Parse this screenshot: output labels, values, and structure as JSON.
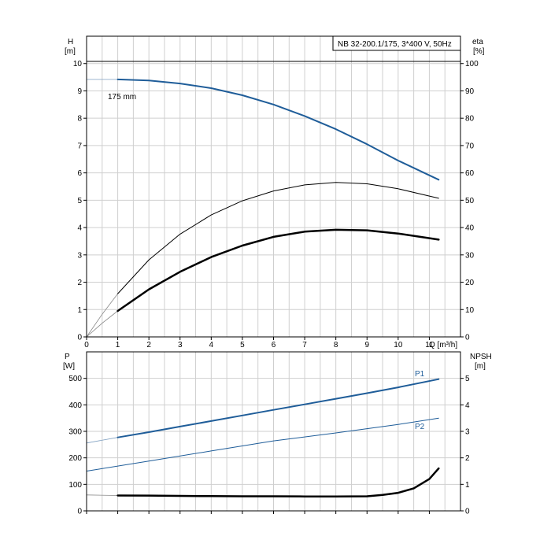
{
  "chart_title": "NB 32-200.1/175, 3*400 V, 50Hz",
  "chart_data": [
    {
      "type": "line",
      "name": "upper",
      "x": {
        "label": "Q [m³/h]",
        "min": 0,
        "max": 12,
        "ticks": [
          0,
          1,
          2,
          3,
          4,
          5,
          6,
          7,
          8,
          9,
          10,
          11
        ]
      },
      "y_left": {
        "label": "H",
        "unit": "[m]",
        "min": 0,
        "max": 11,
        "ticks": [
          0,
          1,
          2,
          3,
          4,
          5,
          6,
          7,
          8,
          9,
          10
        ]
      },
      "y_right": {
        "label": "eta",
        "unit": "[%]",
        "min": 0,
        "max": 110,
        "ticks": [
          0,
          10,
          20,
          30,
          40,
          50,
          60,
          70,
          80,
          90,
          100
        ]
      },
      "grid": true,
      "series": [
        {
          "name": "175 mm",
          "axis": "left",
          "color": "#1f5d99",
          "style": "thick",
          "points": [
            [
              1,
              9.42
            ],
            [
              2,
              9.38
            ],
            [
              3,
              9.27
            ],
            [
              4,
              9.1
            ],
            [
              5,
              8.84
            ],
            [
              6,
              8.5
            ],
            [
              7,
              8.08
            ],
            [
              8,
              7.6
            ],
            [
              9,
              7.05
            ],
            [
              10,
              6.45
            ],
            [
              11.3,
              5.75
            ]
          ],
          "extension": [
            [
              0,
              9.42
            ],
            [
              1,
              9.42
            ]
          ]
        },
        {
          "name": "",
          "axis": "right",
          "color": "#000000",
          "style": "thin",
          "points": [
            [
              1,
              15.8
            ],
            [
              2,
              28.2
            ],
            [
              3,
              37.6
            ],
            [
              4,
              44.6
            ],
            [
              5,
              49.8
            ],
            [
              6,
              53.4
            ],
            [
              7,
              55.6
            ],
            [
              8,
              56.5
            ],
            [
              9,
              56.0
            ],
            [
              10,
              54.2
            ],
            [
              11.3,
              50.7
            ]
          ],
          "extension": [
            [
              0,
              0
            ],
            [
              0.5,
              8.3
            ],
            [
              1,
              15.8
            ]
          ]
        },
        {
          "name": "",
          "axis": "right",
          "color": "#000000",
          "style": "bold",
          "points": [
            [
              1,
              9.5
            ],
            [
              2,
              17.4
            ],
            [
              3,
              23.8
            ],
            [
              4,
              29.2
            ],
            [
              5,
              33.4
            ],
            [
              6,
              36.6
            ],
            [
              7,
              38.5
            ],
            [
              8,
              39.2
            ],
            [
              9,
              39.0
            ],
            [
              10,
              37.8
            ],
            [
              11.3,
              35.6
            ]
          ],
          "extension": [
            [
              0,
              0
            ],
            [
              0.5,
              5
            ],
            [
              1,
              9.5
            ]
          ]
        }
      ]
    },
    {
      "type": "line",
      "name": "lower",
      "x": {
        "min": 0,
        "max": 12,
        "ticks": [
          0,
          1,
          2,
          3,
          4,
          5,
          6,
          7,
          8,
          9,
          10,
          11
        ]
      },
      "y_left": {
        "label": "P",
        "unit": "[W]",
        "min": 0,
        "max": 600,
        "ticks": [
          0,
          100,
          200,
          300,
          400,
          500
        ]
      },
      "y_right": {
        "label": "NPSH",
        "unit": "[m]",
        "min": 0,
        "max": 6,
        "ticks": [
          0,
          1,
          2,
          3,
          4,
          5
        ]
      },
      "grid": true,
      "series": [
        {
          "name": "P1",
          "axis": "left",
          "color": "#1f5d99",
          "style": "thick",
          "points": [
            [
              1,
              277
            ],
            [
              2,
              297
            ],
            [
              3,
              318
            ],
            [
              4,
              339
            ],
            [
              5,
              360
            ],
            [
              6,
              381
            ],
            [
              7,
              402
            ],
            [
              8,
              423
            ],
            [
              9,
              444
            ],
            [
              10,
              466
            ],
            [
              11.3,
              497
            ]
          ],
          "extension": [
            [
              0,
              256
            ],
            [
              1,
              277
            ]
          ]
        },
        {
          "name": "P2",
          "axis": "left",
          "color": "#1f5d99",
          "style": "thin",
          "points": [
            [
              0,
              150
            ],
            [
              2,
              188
            ],
            [
              4,
              226
            ],
            [
              6,
              264
            ],
            [
              8,
              294
            ],
            [
              10,
              326
            ],
            [
              11.3,
              350
            ]
          ]
        },
        {
          "name": "",
          "axis": "right",
          "color": "#000000",
          "style": "bold",
          "points": [
            [
              1,
              0.58
            ],
            [
              2,
              0.575
            ],
            [
              3,
              0.565
            ],
            [
              4,
              0.555
            ],
            [
              5,
              0.55
            ],
            [
              6,
              0.55
            ],
            [
              7,
              0.545
            ],
            [
              8,
              0.54
            ],
            [
              9,
              0.55
            ],
            [
              9.5,
              0.6
            ],
            [
              10,
              0.68
            ],
            [
              10.5,
              0.85
            ],
            [
              11,
              1.2
            ],
            [
              11.3,
              1.6
            ]
          ],
          "extension": [
            [
              0,
              0.6
            ],
            [
              1,
              0.58
            ]
          ]
        }
      ]
    }
  ]
}
